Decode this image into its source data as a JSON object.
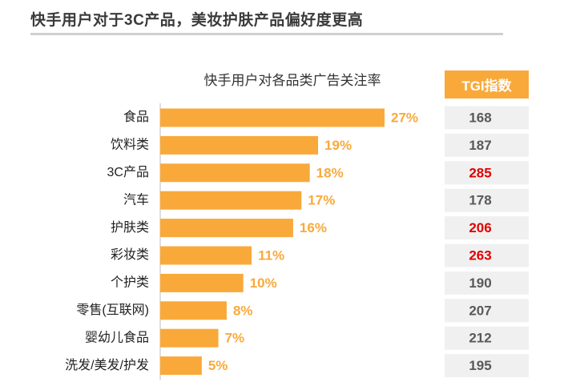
{
  "headline": "快手用户对于3C产品，美妆护肤产品偏好度更高",
  "colors": {
    "bar": "#f9a93a",
    "value_label": "#f9a93a",
    "tgi_header_bg": "#f9a93a",
    "tgi_normal": "#595959",
    "tgi_highlight": "#e00000",
    "tgi_row_bg": "#f0f0f0",
    "axis_line": "#bfbfbf"
  },
  "chart_data": {
    "type": "bar",
    "orientation": "horizontal",
    "title": "快手用户对各品类广告关注率",
    "categories": [
      "食品",
      "饮料类",
      "3C产品",
      "汽车",
      "护肤类",
      "彩妆类",
      "个护类",
      "零售(互联网)",
      "婴幼儿食品",
      "洗发/美发/护发"
    ],
    "values": [
      27,
      19,
      18,
      17,
      16,
      11,
      10,
      8,
      7,
      5
    ],
    "value_labels": [
      "27%",
      "19%",
      "18%",
      "17%",
      "16%",
      "11%",
      "10%",
      "8%",
      "7%",
      "5%"
    ],
    "xlim": [
      0,
      27
    ],
    "grid": false,
    "tgi": {
      "header": "TGI指数",
      "values": [
        168,
        187,
        285,
        178,
        206,
        263,
        190,
        207,
        212,
        195
      ],
      "highlighted": [
        false,
        false,
        true,
        false,
        true,
        true,
        false,
        false,
        false,
        false
      ]
    }
  }
}
